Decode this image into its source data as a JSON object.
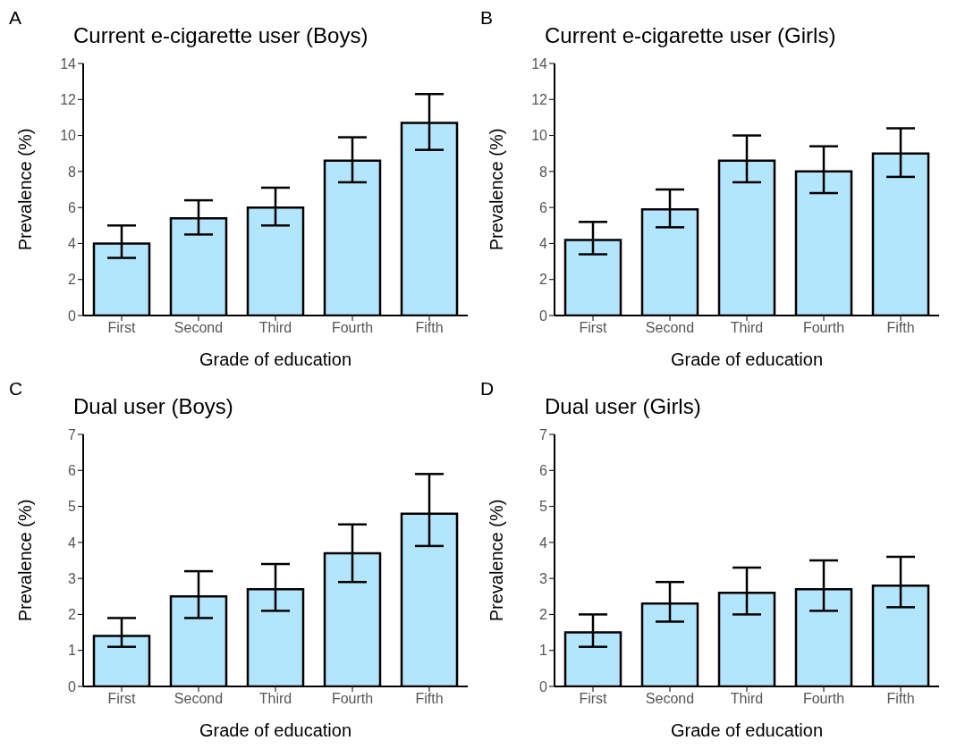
{
  "chart_data": [
    {
      "type": "bar",
      "title": "Current e-cigarette user (Boys)",
      "xlabel": "Grade of education",
      "ylabel": "Prevalence (%)",
      "annotations": [
        "A"
      ],
      "categories": [
        "First",
        "Second",
        "Third",
        "Fourth",
        "Fifth"
      ],
      "values": [
        4.0,
        5.4,
        6.0,
        8.6,
        10.7
      ],
      "errors": [
        [
          3.2,
          5.0
        ],
        [
          4.5,
          6.4
        ],
        [
          5.0,
          7.1
        ],
        [
          7.4,
          9.9
        ],
        [
          9.2,
          12.3
        ]
      ],
      "color": "#b3e5fc",
      "ylim": [
        0,
        14
      ],
      "yticks": [
        0,
        2,
        4,
        6,
        8,
        10,
        12,
        14
      ],
      "grid": false
    },
    {
      "type": "bar",
      "title": "Current e-cigarette user (Girls)",
      "xlabel": "Grade of education",
      "ylabel": "Prevalence (%)",
      "annotations": [
        "B"
      ],
      "categories": [
        "First",
        "Second",
        "Third",
        "Fourth",
        "Fifth"
      ],
      "values": [
        4.2,
        5.9,
        8.6,
        8.0,
        9.0
      ],
      "errors": [
        [
          3.4,
          5.2
        ],
        [
          4.9,
          7.0
        ],
        [
          7.4,
          10.0
        ],
        [
          6.8,
          9.4
        ],
        [
          7.7,
          10.4
        ]
      ],
      "color": "#b3e5fc",
      "ylim": [
        0,
        14
      ],
      "yticks": [
        0,
        2,
        4,
        6,
        8,
        10,
        12,
        14
      ],
      "grid": false
    },
    {
      "type": "bar",
      "title": "Dual user (Boys)",
      "xlabel": "Grade of education",
      "ylabel": "Prevalence (%)",
      "annotations": [
        "C"
      ],
      "categories": [
        "First",
        "Second",
        "Third",
        "Fourth",
        "Fifth"
      ],
      "values": [
        1.4,
        2.5,
        2.7,
        3.7,
        4.8
      ],
      "errors": [
        [
          1.1,
          1.9
        ],
        [
          1.9,
          3.2
        ],
        [
          2.1,
          3.4
        ],
        [
          2.9,
          4.5
        ],
        [
          3.9,
          5.9
        ]
      ],
      "color": "#b3e5fc",
      "ylim": [
        0,
        7
      ],
      "yticks": [
        0,
        1,
        2,
        3,
        4,
        5,
        6,
        7
      ],
      "grid": false
    },
    {
      "type": "bar",
      "title": "Dual user (Girls)",
      "xlabel": "Grade of education",
      "ylabel": "Prevalence (%)",
      "annotations": [
        "D"
      ],
      "categories": [
        "First",
        "Second",
        "Third",
        "Fourth",
        "Fifth"
      ],
      "values": [
        1.5,
        2.3,
        2.6,
        2.7,
        2.8
      ],
      "errors": [
        [
          1.1,
          2.0
        ],
        [
          1.8,
          2.9
        ],
        [
          2.0,
          3.3
        ],
        [
          2.1,
          3.5
        ],
        [
          2.2,
          3.6
        ]
      ],
      "color": "#b3e5fc",
      "ylim": [
        0,
        7
      ],
      "yticks": [
        0,
        1,
        2,
        3,
        4,
        5,
        6,
        7
      ],
      "grid": false
    }
  ]
}
